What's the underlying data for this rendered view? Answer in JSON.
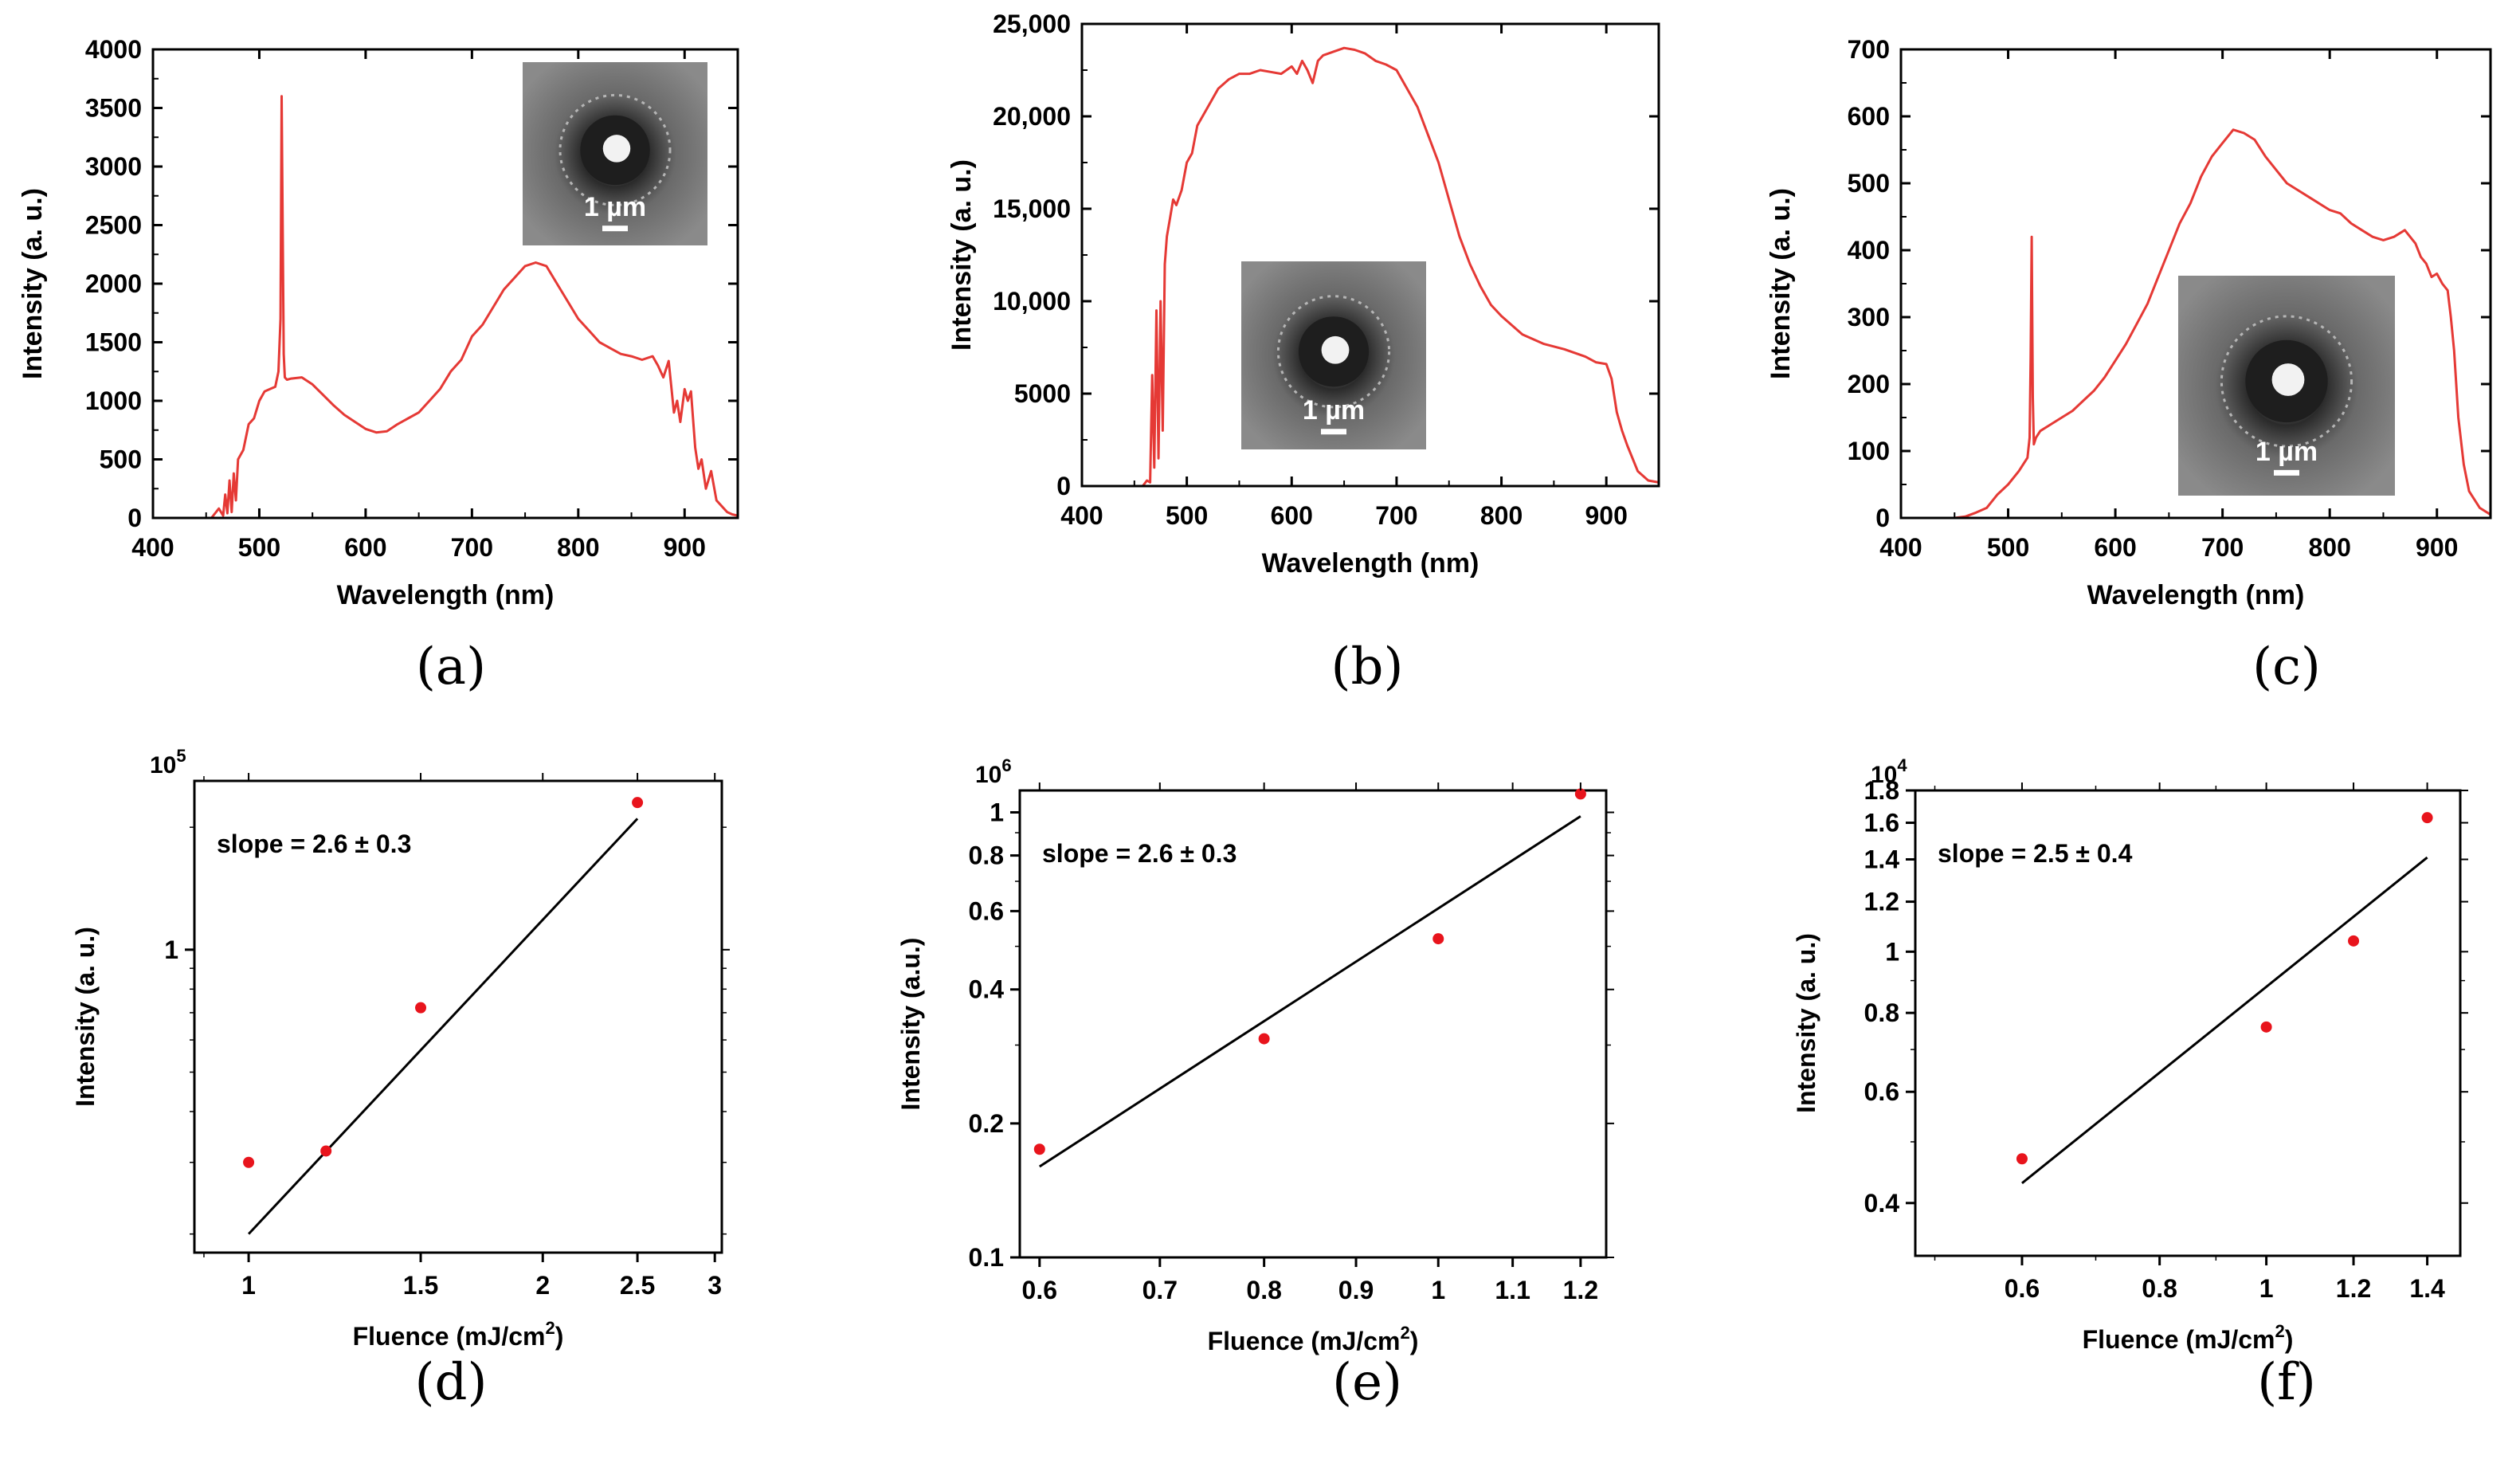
{
  "chart_data": [
    {
      "type": "line",
      "panel": "(a)",
      "xlabel": "Wavelength (nm)",
      "ylabel": "Intensity (a. u.)",
      "xlim": [
        400,
        950
      ],
      "ylim": [
        0,
        4000
      ],
      "xticks": [
        400,
        500,
        600,
        700,
        800,
        900
      ],
      "yticks": [
        0,
        500,
        1000,
        1500,
        2000,
        2500,
        3000,
        3500,
        4000
      ],
      "ytick_labels": [
        "0",
        "500",
        "1000",
        "1500",
        "2000",
        "2500",
        "3000",
        "3500",
        "4000"
      ],
      "color": "#e53935",
      "inset_label": "1 µm",
      "inset_position": "top-right",
      "series": [
        {
          "name": "spectrum",
          "x": [
            400,
            440,
            455,
            462,
            466,
            468,
            470,
            472,
            474,
            476,
            478,
            480,
            485,
            490,
            495,
            500,
            505,
            510,
            515,
            518,
            520,
            521,
            522,
            523,
            524,
            526,
            530,
            540,
            550,
            560,
            570,
            580,
            590,
            600,
            610,
            620,
            630,
            640,
            650,
            660,
            670,
            680,
            690,
            700,
            710,
            720,
            730,
            740,
            750,
            760,
            770,
            780,
            790,
            800,
            810,
            820,
            830,
            840,
            850,
            860,
            870,
            875,
            880,
            885,
            890,
            893,
            896,
            900,
            903,
            906,
            910,
            913,
            916,
            920,
            925,
            930,
            935,
            940,
            945,
            950
          ],
          "y": [
            0,
            0,
            0,
            80,
            20,
            200,
            40,
            320,
            50,
            380,
            150,
            500,
            580,
            800,
            850,
            1000,
            1080,
            1100,
            1120,
            1250,
            1700,
            3600,
            2500,
            1400,
            1200,
            1180,
            1190,
            1200,
            1140,
            1050,
            960,
            880,
            820,
            760,
            730,
            740,
            800,
            850,
            900,
            1000,
            1100,
            1250,
            1350,
            1550,
            1650,
            1800,
            1950,
            2050,
            2150,
            2180,
            2150,
            2000,
            1850,
            1700,
            1600,
            1500,
            1450,
            1400,
            1380,
            1350,
            1380,
            1300,
            1200,
            1340,
            900,
            1000,
            820,
            1100,
            1000,
            1080,
            600,
            420,
            500,
            250,
            400,
            150,
            100,
            50,
            30,
            20
          ]
        }
      ]
    },
    {
      "type": "line",
      "panel": "(b)",
      "xlabel": "Wavelength (nm)",
      "ylabel": "Intensity (a. u.)",
      "xlim": [
        400,
        950
      ],
      "ylim": [
        0,
        25000
      ],
      "xticks": [
        400,
        500,
        600,
        700,
        800,
        900
      ],
      "yticks": [
        0,
        5000,
        10000,
        15000,
        20000,
        25000
      ],
      "ytick_labels": [
        "0",
        "5000",
        "10,000",
        "15,000",
        "20,000",
        "25,000"
      ],
      "color": "#e53935",
      "inset_label": "1 µm",
      "inset_position": "bottom-center",
      "series": [
        {
          "name": "spectrum",
          "x": [
            400,
            450,
            458,
            462,
            465,
            467,
            469,
            471,
            473,
            475,
            477,
            479,
            481,
            484,
            487,
            490,
            495,
            500,
            505,
            510,
            515,
            520,
            530,
            540,
            550,
            560,
            570,
            580,
            590,
            600,
            605,
            610,
            615,
            620,
            625,
            630,
            640,
            650,
            660,
            670,
            680,
            690,
            700,
            710,
            720,
            730,
            740,
            750,
            760,
            770,
            780,
            790,
            800,
            820,
            840,
            860,
            880,
            890,
            900,
            905,
            910,
            915,
            920,
            930,
            940,
            950
          ],
          "y": [
            0,
            0,
            0,
            300,
            200,
            6000,
            1000,
            9500,
            1500,
            10000,
            3000,
            12000,
            13500,
            14500,
            15500,
            15200,
            16000,
            17500,
            18000,
            19500,
            20000,
            20500,
            21500,
            22000,
            22300,
            22300,
            22500,
            22400,
            22300,
            22700,
            22300,
            23000,
            22500,
            21800,
            23000,
            23300,
            23500,
            23700,
            23600,
            23400,
            23000,
            22800,
            22500,
            21500,
            20500,
            19000,
            17500,
            15500,
            13500,
            12000,
            10800,
            9800,
            9200,
            8200,
            7700,
            7400,
            7000,
            6700,
            6600,
            5800,
            4000,
            3000,
            2200,
            800,
            300,
            200
          ]
        }
      ]
    },
    {
      "type": "line",
      "panel": "(c)",
      "xlabel": "Wavelength (nm)",
      "ylabel": "Intensity (a. u.)",
      "xlim": [
        400,
        950
      ],
      "ylim": [
        0,
        700
      ],
      "xticks": [
        400,
        500,
        600,
        700,
        800,
        900
      ],
      "yticks": [
        0,
        100,
        200,
        300,
        400,
        500,
        600,
        700
      ],
      "ytick_labels": [
        "0",
        "100",
        "200",
        "300",
        "400",
        "500",
        "600",
        "700"
      ],
      "color": "#e53935",
      "inset_label": "1 µm",
      "inset_position": "bottom-right",
      "series": [
        {
          "name": "spectrum",
          "x": [
            400,
            450,
            460,
            470,
            480,
            490,
            500,
            510,
            518,
            520,
            521,
            522,
            523,
            524,
            526,
            530,
            540,
            550,
            560,
            570,
            580,
            590,
            600,
            610,
            620,
            630,
            640,
            650,
            660,
            670,
            680,
            690,
            700,
            710,
            720,
            730,
            740,
            750,
            760,
            770,
            780,
            790,
            800,
            810,
            820,
            830,
            840,
            850,
            860,
            870,
            875,
            880,
            885,
            890,
            895,
            900,
            905,
            910,
            913,
            916,
            920,
            925,
            930,
            940,
            950
          ],
          "y": [
            0,
            0,
            2,
            8,
            15,
            35,
            50,
            70,
            90,
            120,
            240,
            420,
            180,
            110,
            120,
            130,
            140,
            150,
            160,
            175,
            190,
            210,
            235,
            260,
            290,
            320,
            360,
            400,
            440,
            470,
            510,
            540,
            560,
            580,
            575,
            565,
            540,
            520,
            500,
            490,
            480,
            470,
            460,
            455,
            440,
            430,
            420,
            415,
            420,
            430,
            420,
            410,
            390,
            380,
            360,
            365,
            350,
            340,
            300,
            250,
            150,
            80,
            40,
            15,
            5
          ]
        }
      ]
    },
    {
      "type": "scatter",
      "panel": "(d)",
      "xlabel_main": "Fluence (mJ/cm",
      "xlabel_sup": "2",
      "xlabel_close": ")",
      "ylabel": "Intensity (a. u.)",
      "xscale": "log",
      "yscale": "log",
      "xlim": [
        0.88,
        3.05
      ],
      "ylim": [
        0.18,
        2.6
      ],
      "xticks": [
        1,
        1.5,
        2,
        2.5,
        3
      ],
      "xtick_labels": [
        "1",
        "1.5",
        "2",
        "2.5",
        "3"
      ],
      "yticks": [
        1
      ],
      "ytick_labels": [
        "1"
      ],
      "axis_multiplier": "10",
      "axis_multiplier_exp": "5",
      "annotation": "slope = 2.6 ± 0.3",
      "points": {
        "x": [
          1.0,
          1.2,
          1.5,
          2.5
        ],
        "y": [
          0.3,
          0.32,
          0.72,
          2.3
        ]
      },
      "fit": {
        "x": [
          1.0,
          2.5
        ],
        "y": [
          0.2,
          2.1
        ]
      }
    },
    {
      "type": "scatter",
      "panel": "(e)",
      "xlabel_main": "Fluence (mJ/cm",
      "xlabel_sup": "2",
      "xlabel_close": ")",
      "ylabel": "Intensity (a.u.)",
      "xscale": "log",
      "yscale": "log",
      "xlim": [
        0.585,
        1.24
      ],
      "ylim": [
        0.1,
        1.12
      ],
      "xticks": [
        0.6,
        0.7,
        0.8,
        0.9,
        1,
        1.1,
        1.2
      ],
      "xtick_labels": [
        "0.6",
        "0.7",
        "0.8",
        "0.9",
        "1",
        "1.1",
        "1.2"
      ],
      "yticks": [
        0.1,
        0.2,
        0.4,
        0.6,
        0.8,
        1
      ],
      "ytick_labels": [
        "0.1",
        "0.2",
        "0.4",
        "0.6",
        "0.8",
        "1"
      ],
      "axis_multiplier": "10",
      "axis_multiplier_exp": "6",
      "annotation": "slope = 2.6 ± 0.3",
      "points": {
        "x": [
          0.6,
          0.8,
          1.0,
          1.2
        ],
        "y": [
          0.175,
          0.31,
          0.52,
          1.1
        ]
      },
      "fit": {
        "x": [
          0.6,
          1.2
        ],
        "y": [
          0.16,
          0.98
        ]
      }
    },
    {
      "type": "scatter",
      "panel": "(f)",
      "xlabel_main": "Fluence (mJ/cm",
      "xlabel_sup": "2",
      "xlabel_close": ")",
      "ylabel": "Intensity (a. u.)",
      "xscale": "log",
      "yscale": "log",
      "xlim": [
        0.48,
        1.5
      ],
      "ylim": [
        0.33,
        1.8
      ],
      "xticks": [
        0.6,
        0.8,
        1,
        1.2,
        1.4
      ],
      "xtick_labels": [
        "0.6",
        "0.8",
        "1",
        "1.2",
        "1.4"
      ],
      "yticks": [
        0.4,
        0.6,
        0.8,
        1,
        1.2,
        1.4,
        1.6,
        1.8
      ],
      "ytick_labels": [
        "0.4",
        "0.6",
        "0.8",
        "1",
        "1.2",
        "1.4",
        "1.6",
        "1.8"
      ],
      "axis_multiplier": "10",
      "axis_multiplier_exp": "4",
      "annotation": "slope = 2.5 ± 0.4",
      "points": {
        "x": [
          0.6,
          1.0,
          1.2,
          1.4
        ],
        "y": [
          0.47,
          0.76,
          1.04,
          1.63
        ]
      },
      "fit": {
        "x": [
          0.6,
          1.4
        ],
        "y": [
          0.43,
          1.41
        ]
      }
    }
  ]
}
